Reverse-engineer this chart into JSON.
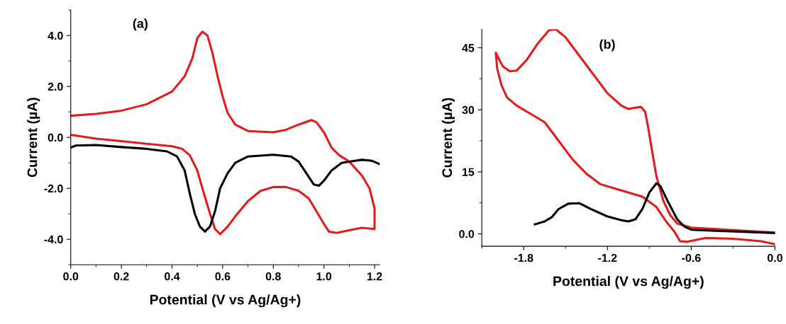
{
  "chart_data": [
    {
      "type": "line",
      "annotations": [
        "(a)"
      ],
      "xlabel": "Potential (V vs Ag/Ag+)",
      "ylabel": "Current (µA)",
      "xlim": [
        0,
        1.22
      ],
      "ylim": [
        -5.0,
        5.0
      ],
      "xticks": [
        {
          "value": 0,
          "label": "0.0"
        },
        {
          "value": 0.2,
          "label": "0.2"
        },
        {
          "value": 0.4,
          "label": "0.4"
        },
        {
          "value": 0.6,
          "label": "0.6"
        },
        {
          "value": 0.8,
          "label": "0.8"
        },
        {
          "value": 1.0,
          "label": "1.0"
        },
        {
          "value": 1.2,
          "label": "1.2"
        }
      ],
      "yticks": [
        {
          "value": -4,
          "label": "-4.0"
        },
        {
          "value": -2,
          "label": "-2.0"
        },
        {
          "value": 0,
          "label": "0.0"
        },
        {
          "value": 2,
          "label": "2.0"
        },
        {
          "value": 4,
          "label": "4.0"
        }
      ],
      "grid": false,
      "marker": "none",
      "line_style": "solid",
      "series": [
        {
          "color": "#e41a1c",
          "x": [
            0,
            0.1,
            0.2,
            0.3,
            0.4,
            0.45,
            0.48,
            0.5,
            0.52,
            0.54,
            0.56,
            0.58,
            0.6,
            0.62,
            0.65,
            0.7,
            0.8,
            0.85,
            0.9,
            0.95,
            0.97,
            1.0,
            1.03,
            1.06,
            1.1,
            1.15,
            1.18,
            1.2,
            1.2,
            1.15,
            1.1,
            1.05,
            1.02,
            1.0,
            0.97,
            0.94,
            0.9,
            0.85,
            0.8,
            0.75,
            0.7,
            0.65,
            0.62,
            0.59,
            0.57,
            0.55,
            0.52,
            0.5,
            0.47,
            0.44,
            0.4,
            0.3,
            0.2,
            0.1,
            0
          ],
          "values": [
            0.85,
            0.92,
            1.05,
            1.3,
            1.8,
            2.4,
            3.1,
            3.9,
            4.15,
            4.0,
            3.3,
            2.4,
            1.6,
            0.95,
            0.5,
            0.25,
            0.2,
            0.3,
            0.5,
            0.68,
            0.6,
            0.2,
            -0.4,
            -0.7,
            -0.95,
            -1.5,
            -2.0,
            -2.8,
            -3.6,
            -3.55,
            -3.65,
            -3.75,
            -3.7,
            -3.4,
            -2.9,
            -2.4,
            -2.1,
            -1.95,
            -1.95,
            -2.1,
            -2.5,
            -3.1,
            -3.5,
            -3.8,
            -3.6,
            -3.0,
            -2.0,
            -1.3,
            -0.7,
            -0.45,
            -0.35,
            -0.25,
            -0.15,
            -0.05,
            0.1
          ]
        },
        {
          "color": "#000000",
          "x": [
            0,
            0.02,
            0.1,
            0.2,
            0.3,
            0.38,
            0.42,
            0.45,
            0.47,
            0.49,
            0.51,
            0.53,
            0.55,
            0.57,
            0.59,
            0.62,
            0.65,
            0.7,
            0.8,
            0.87,
            0.9,
            0.93,
            0.96,
            0.98,
            1.0,
            1.03,
            1.07,
            1.1,
            1.15,
            1.19,
            1.22
          ],
          "values": [
            -0.4,
            -0.32,
            -0.3,
            -0.38,
            -0.45,
            -0.55,
            -0.75,
            -1.3,
            -2.2,
            -3.0,
            -3.5,
            -3.7,
            -3.5,
            -2.9,
            -2.0,
            -1.4,
            -1.0,
            -0.75,
            -0.68,
            -0.75,
            -0.95,
            -1.4,
            -1.85,
            -1.9,
            -1.7,
            -1.3,
            -1.0,
            -0.95,
            -0.88,
            -0.92,
            -1.05
          ]
        }
      ]
    },
    {
      "type": "line",
      "annotations": [
        "(b)"
      ],
      "xlabel": "Potential (V vs Ag/Ag+)",
      "ylabel": "Current (µA)",
      "xlim": [
        -2.1,
        0.0
      ],
      "ylim": [
        -3.0,
        49.5
      ],
      "xticks": [
        -1.8,
        -1.2,
        -0.6,
        {
          "value": 0,
          "label": "0.0"
        }
      ],
      "yticks": [
        {
          "value": 0,
          "label": "0.0"
        },
        15,
        30,
        45
      ],
      "grid": false,
      "marker": "none",
      "line_style": "solid",
      "series": [
        {
          "color": "#e41a1c",
          "x": [
            0,
            -0.3,
            -0.6,
            -0.7,
            -0.75,
            -0.8,
            -0.85,
            -0.88,
            -0.91,
            -0.93,
            -0.96,
            -1.0,
            -1.05,
            -1.1,
            -1.2,
            -1.3,
            -1.4,
            -1.5,
            -1.57,
            -1.62,
            -1.7,
            -1.78,
            -1.85,
            -1.9,
            -1.95,
            -2.0,
            -1.99,
            -1.96,
            -1.92,
            -1.85,
            -1.75,
            -1.65,
            -1.55,
            -1.45,
            -1.35,
            -1.25,
            -1.1,
            -0.95,
            -0.85,
            -0.78,
            -0.72,
            -0.68,
            -0.63,
            -0.5,
            -0.3,
            -0.1,
            0
          ],
          "values": [
            0.3,
            0.9,
            1.5,
            2.5,
            4.5,
            8,
            14,
            20,
            26,
            29.5,
            30.7,
            30.5,
            30.2,
            31,
            34,
            38.5,
            43,
            47.5,
            49.5,
            49.2,
            46,
            42,
            39.5,
            39.3,
            40.5,
            43.8,
            40,
            36,
            33,
            31,
            29,
            27,
            22.5,
            18,
            14.5,
            12,
            10.5,
            9,
            6.5,
            3,
            0.5,
            -1.8,
            -1.9,
            -1.0,
            -1.2,
            -1.8,
            -2.5
          ]
        },
        {
          "color": "#000000",
          "x": [
            -1.72,
            -1.65,
            -1.6,
            -1.55,
            -1.48,
            -1.4,
            -1.32,
            -1.2,
            -1.1,
            -1.05,
            -1.0,
            -0.95,
            -0.9,
            -0.85,
            -0.82,
            -0.77,
            -0.7,
            -0.65,
            -0.6,
            -0.4,
            0
          ],
          "values": [
            2.3,
            3.0,
            4.0,
            6.0,
            7.3,
            7.4,
            6,
            4.2,
            3.3,
            3.0,
            3.5,
            6,
            10,
            12.2,
            11.5,
            8,
            3.5,
            1.8,
            1.0,
            0.7,
            0.2
          ]
        }
      ]
    }
  ]
}
